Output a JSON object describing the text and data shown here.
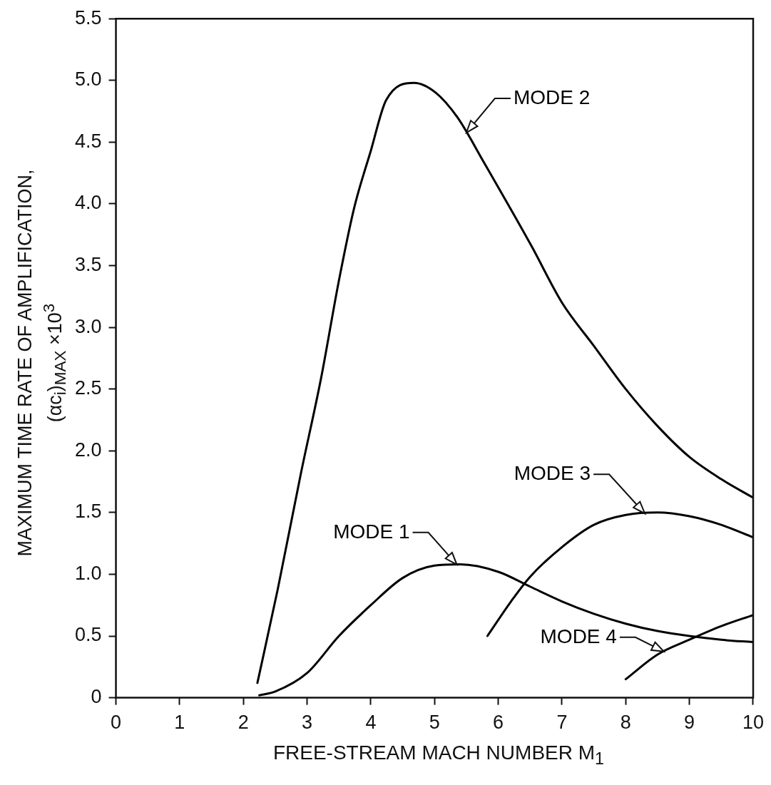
{
  "chart_data": {
    "type": "line",
    "xlabel": "FREE-STREAM MACH NUMBER M$_{1}$",
    "ylabel": "MAXIMUM TIME RATE OF AMPLIFICATION,\n(αc$_{i}$)$_{MAX}$ ×10$^{3}$",
    "xlim": [
      0,
      10
    ],
    "xticks": [
      0,
      1,
      2,
      3,
      4,
      5,
      6,
      7,
      8,
      9,
      10
    ],
    "ylim": [
      0,
      5.5
    ],
    "yticks": [
      0,
      {
        "value": 0.5,
        "label": "0.5"
      },
      {
        "value": 1,
        "label": "1.0"
      },
      {
        "value": 1.5,
        "label": "1.5"
      },
      {
        "value": 2,
        "label": "2.0"
      },
      {
        "value": 2.5,
        "label": "2.5"
      },
      {
        "value": 3,
        "label": "3.0"
      },
      {
        "value": 3.5,
        "label": "3.5"
      },
      {
        "value": 4,
        "label": "4.0"
      },
      {
        "value": 4.5,
        "label": "4.5"
      },
      {
        "value": 5,
        "label": "5.0"
      },
      {
        "value": 5.5,
        "label": "5.5"
      }
    ],
    "grid": false,
    "legend": false,
    "marker": "none",
    "line_style": "solid",
    "series": [
      {
        "name": "MODE 1",
        "color": "#000000",
        "x": [
          2.25,
          2.5,
          3,
          3.5,
          4,
          4.5,
          5,
          5.4,
          6,
          6.5,
          7,
          7.5,
          8,
          8.5,
          9,
          9.5,
          10
        ],
        "values": [
          0.02,
          0.05,
          0.2,
          0.5,
          0.75,
          0.97,
          1.07,
          1.08,
          1.02,
          0.9,
          0.78,
          0.68,
          0.6,
          0.54,
          0.5,
          0.47,
          0.45
        ]
      },
      {
        "name": "MODE 2",
        "color": "#000000",
        "x": [
          2.22,
          2.54,
          2.9,
          3.22,
          3.5,
          3.74,
          4,
          4.24,
          4.68,
          5.02,
          5.36,
          5.77,
          6.52,
          7,
          7.5,
          8,
          8.5,
          9,
          9.5,
          10
        ],
        "values": [
          0.12,
          0.88,
          1.81,
          2.59,
          3.38,
          3.97,
          4.43,
          4.84,
          4.98,
          4.9,
          4.7,
          4.34,
          3.66,
          3.2,
          2.85,
          2.5,
          2.2,
          1.95,
          1.77,
          1.62
        ]
      },
      {
        "name": "MODE 3",
        "color": "#000000",
        "x": [
          5.83,
          6.2,
          6.5,
          7,
          7.5,
          8,
          8.5,
          9,
          9.5,
          10
        ],
        "values": [
          0.5,
          0.78,
          0.98,
          1.22,
          1.4,
          1.48,
          1.5,
          1.47,
          1.4,
          1.3
        ]
      },
      {
        "name": "MODE 4",
        "color": "#000000",
        "x": [
          8,
          8.5,
          9,
          9.5,
          10
        ],
        "values": [
          0.15,
          0.35,
          0.47,
          0.58,
          0.67
        ]
      }
    ]
  }
}
